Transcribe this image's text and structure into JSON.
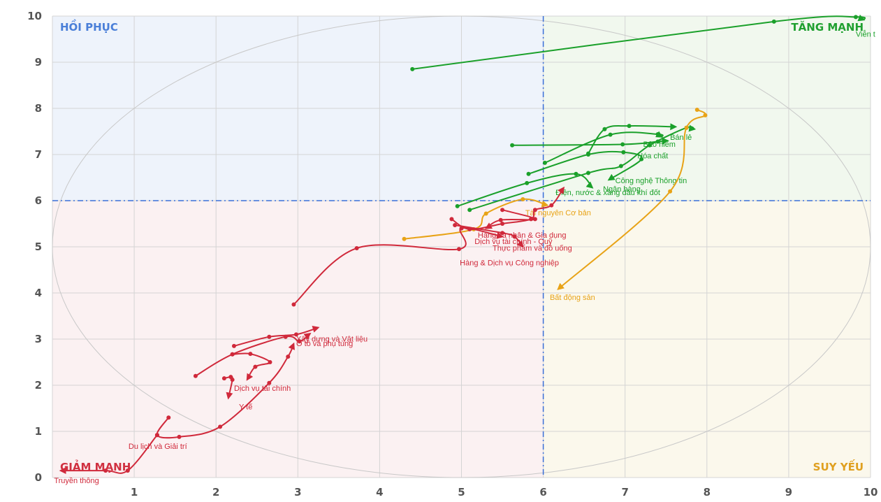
{
  "chart_data": {
    "type": "scatter",
    "title": "",
    "xlabel": "",
    "ylabel": "",
    "xlim": [
      0,
      10
    ],
    "ylim": [
      0,
      10
    ],
    "xticks": [
      "1",
      "2",
      "3",
      "4",
      "5",
      "6",
      "7",
      "8",
      "9",
      "10"
    ],
    "yticks": [
      "0",
      "1",
      "2",
      "3",
      "4",
      "5",
      "6",
      "7",
      "8",
      "9",
      "10"
    ],
    "divider": {
      "x": 6,
      "y": 6
    },
    "quadrants": [
      {
        "name": "HỒI PHỤC",
        "color": "#4a7fd8",
        "corner": "top-left"
      },
      {
        "name": "TĂNG MẠNH",
        "color": "#20a030",
        "corner": "top-right"
      },
      {
        "name": "GIẢM MẠNH",
        "color": "#d03040",
        "corner": "bottom-left"
      },
      {
        "name": "SUY YẾU",
        "color": "#e0a020",
        "corner": "bottom-right"
      }
    ],
    "colors": {
      "strong": "#1aa02a",
      "weak": "#e8a317",
      "decline": "#d0293b"
    },
    "series": [
      {
        "name": "Viễn t",
        "color": "#1aa02a",
        "points": [
          [
            4.4,
            8.85
          ],
          [
            8.82,
            9.88
          ],
          [
            9.82,
            9.98
          ],
          [
            9.92,
            9.92
          ]
        ],
        "label": [
          9.82,
          9.55
        ]
      },
      {
        "name": "Bán lẻ",
        "color": "#1aa02a",
        "points": [
          [
            5.1,
            5.8
          ],
          [
            6.55,
            6.6
          ],
          [
            6.95,
            6.75
          ],
          [
            7.3,
            7.2
          ],
          [
            7.75,
            7.58
          ],
          [
            7.85,
            7.55
          ]
        ],
        "label": [
          7.55,
          7.32
        ]
      },
      {
        "name": "Bảo hiểm",
        "color": "#1aa02a",
        "points": [
          [
            5.62,
            7.2
          ],
          [
            6.97,
            7.22
          ],
          [
            7.4,
            7.28
          ],
          [
            7.52,
            7.3
          ]
        ],
        "label": [
          7.22,
          7.17
        ]
      },
      {
        "name": "Hóa chất",
        "color": "#1aa02a",
        "points": [
          [
            6.02,
            6.82
          ],
          [
            6.82,
            7.43
          ],
          [
            7.4,
            7.44
          ],
          [
            7.45,
            7.38
          ]
        ],
        "label": [
          7.15,
          6.92
        ]
      },
      {
        "name": "Công nghệ Thông tin",
        "color": "#1aa02a",
        "points": [
          [
            5.82,
            6.58
          ],
          [
            6.55,
            7.0
          ],
          [
            6.98,
            7.05
          ],
          [
            7.2,
            6.9
          ],
          [
            6.8,
            6.45
          ]
        ],
        "label": [
          6.88,
          6.38
        ]
      },
      {
        "name": "Ngân hàng",
        "color": "#1aa02a",
        "points": [
          [
            6.55,
            7.02
          ],
          [
            6.75,
            7.55
          ],
          [
            7.05,
            7.62
          ],
          [
            7.62,
            7.6
          ]
        ],
        "label": [
          6.73,
          6.2
        ]
      },
      {
        "name": "Điện, nước & xăng dầu khí đốt",
        "color": "#1aa02a",
        "points": [
          [
            4.95,
            5.88
          ],
          [
            5.8,
            6.38
          ],
          [
            6.4,
            6.58
          ],
          [
            6.6,
            6.28
          ]
        ],
        "label": [
          6.15,
          6.12
        ]
      },
      {
        "name": "Bất động sản",
        "color": "#e8a317",
        "points": [
          [
            7.88,
            7.97
          ],
          [
            7.98,
            7.85
          ],
          [
            7.75,
            7.58
          ],
          [
            7.55,
            6.2
          ],
          [
            6.18,
            4.08
          ]
        ],
        "label": [
          6.08,
          3.85
        ]
      },
      {
        "name": "Tài nguyên Cơ bản",
        "color": "#e8a317",
        "points": [
          [
            4.3,
            5.17
          ],
          [
            5.15,
            5.38
          ],
          [
            5.3,
            5.72
          ],
          [
            5.75,
            6.03
          ],
          [
            6.05,
            5.9
          ]
        ],
        "label": [
          5.78,
          5.68
        ]
      },
      {
        "name": "Hàng cá nhân & Gia dụng",
        "color": "#d0293b",
        "points": [
          [
            5.5,
            5.8
          ],
          [
            5.9,
            5.6
          ],
          [
            5.48,
            5.58
          ],
          [
            5.3,
            5.4
          ]
        ],
        "label": [
          5.2,
          5.2
        ]
      },
      {
        "name": "Dịch vụ tài chính - Quỹ",
        "color": "#d0293b",
        "points": [
          [
            4.92,
            5.47
          ],
          [
            5.5,
            5.3
          ],
          [
            5.65,
            5.22
          ],
          [
            5.75,
            5.0
          ]
        ],
        "label": [
          5.16,
          5.06
        ]
      },
      {
        "name": "Thực phẩm và đồ uống",
        "color": "#d0293b",
        "points": [
          [
            4.88,
            5.6
          ],
          [
            5.1,
            5.38
          ],
          [
            5.5,
            5.5
          ],
          [
            5.85,
            5.6
          ],
          [
            5.9,
            5.8
          ],
          [
            6.1,
            5.9
          ],
          [
            6.25,
            6.28
          ]
        ],
        "label": [
          5.38,
          4.92
        ]
      },
      {
        "name": "Hàng & Dịch vụ Công nghiệp",
        "color": "#d0293b",
        "points": [
          [
            2.95,
            3.75
          ],
          [
            3.72,
            4.97
          ],
          [
            4.97,
            4.95
          ],
          [
            5.0,
            5.4
          ],
          [
            5.5,
            5.22
          ]
        ],
        "label": [
          4.98,
          4.6
        ]
      },
      {
        "name": "Xây dựng và Vật liệu",
        "color": "#d0293b",
        "points": [
          [
            2.22,
            2.85
          ],
          [
            2.65,
            3.05
          ],
          [
            2.98,
            3.1
          ],
          [
            3.25,
            3.25
          ]
        ],
        "label": [
          2.98,
          2.95
        ]
      },
      {
        "name": "Ô tô và phụ tùng",
        "color": "#d0293b",
        "points": [
          [
            1.75,
            2.2
          ],
          [
            2.2,
            2.67
          ],
          [
            2.85,
            3.05
          ],
          [
            3.02,
            2.95
          ],
          [
            3.15,
            3.12
          ]
        ],
        "label": [
          2.98,
          2.85
        ]
      },
      {
        "name": "Dịch vụ tài chính",
        "color": "#d0293b",
        "points": [
          [
            2.2,
            2.67
          ],
          [
            2.42,
            2.68
          ],
          [
            2.66,
            2.5
          ],
          [
            2.48,
            2.4
          ],
          [
            2.38,
            2.12
          ]
        ],
        "label": [
          2.22,
          1.88
        ]
      },
      {
        "name": "Y tế",
        "color": "#d0293b",
        "points": [
          [
            2.1,
            2.15
          ],
          [
            2.18,
            2.18
          ],
          [
            2.2,
            2.12
          ],
          [
            2.15,
            1.72
          ]
        ],
        "label": [
          2.28,
          1.48
        ]
      },
      {
        "name": "Du lịch và Giải trí",
        "color": "#d0293b",
        "points": [
          [
            1.42,
            1.3
          ],
          [
            1.28,
            0.92
          ],
          [
            1.55,
            0.88
          ],
          [
            2.05,
            1.1
          ],
          [
            2.65,
            2.05
          ],
          [
            2.88,
            2.62
          ],
          [
            2.95,
            2.9
          ]
        ],
        "label": [
          0.93,
          0.62
        ]
      },
      {
        "name": "Truyền thông",
        "color": "#d0293b",
        "points": [
          [
            1.28,
            0.92
          ],
          [
            0.92,
            0.15
          ],
          [
            0.65,
            0.15
          ],
          [
            0.1,
            0.15
          ]
        ],
        "label": [
          0.02,
          -0.12
        ]
      }
    ]
  }
}
